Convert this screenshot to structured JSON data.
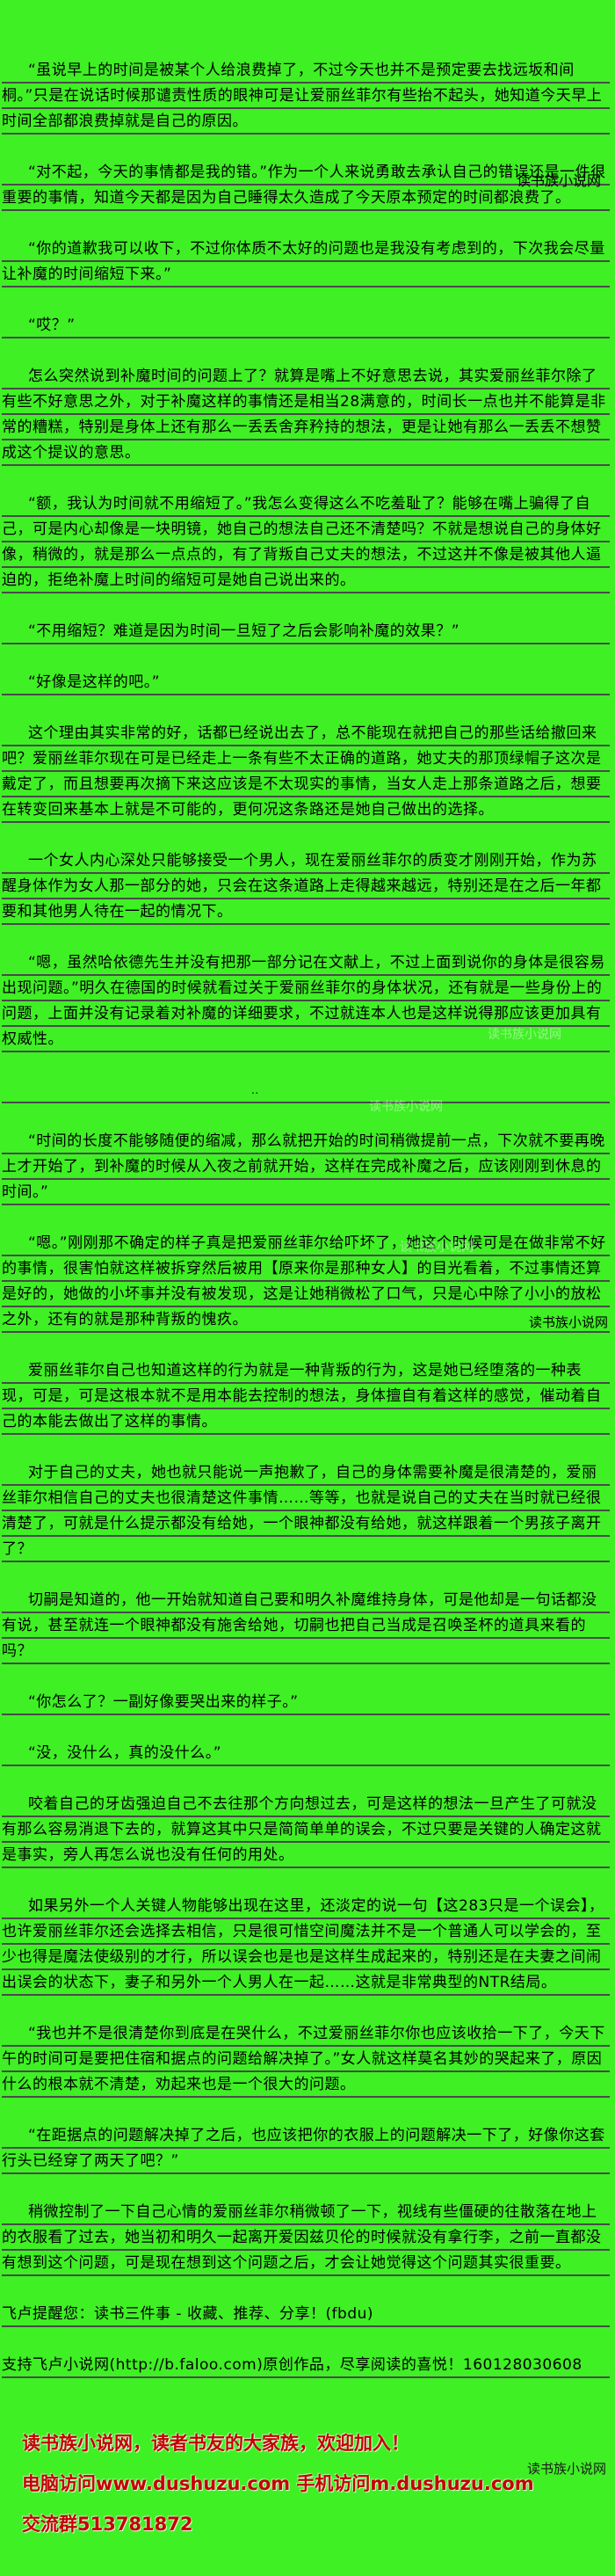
{
  "page": {
    "background_color": "#3ff024",
    "rule_line_color": "#4a4a4a",
    "text_color": "#000000",
    "footer_accent_color": "#c40000"
  },
  "paragraphs": [
    {
      "cls": "indent",
      "text": "“虽说早上的时间是被某个人给浪费掉了，不过今天也并不是预定要去找远坂和间桐。”只是在说话时候那谴责性质的眼神可是让爱丽丝菲尔有些抬不起头，她知道今天早上时间全部都浪费掉就是自己的原因。"
    },
    {
      "cls": "indent",
      "text": "“对不起，今天的事情都是我的错。”作为一个人来说勇敢去承认自己的错误还是一件很重要的事情，知道今天都是因为自己睡得太久造成了今天原本预定的时间都浪费了。"
    },
    {
      "cls": "indent",
      "text": "“你的道歉我可以收下，不过你体质不太好的问题也是我没有考虑到的，下次我会尽量让补魔的时间缩短下来。”"
    },
    {
      "cls": "indent",
      "text": "“哎？”"
    },
    {
      "cls": "indent",
      "text": "怎么突然说到补魔时间的问题上了？就算是嘴上不好意思去说，其实爱丽丝菲尔除了有些不好意思之外，对于补魔这样的事情还是相当28满意的，时间长一点也并不能算是非常的糟糕，特别是身体上还有那么一丢丢舍弃矜持的想法，更是让她有那么一丢丢不想赞成这个提议的意思。"
    },
    {
      "cls": "indent",
      "text": "“额，我认为时间就不用缩短了。”我怎么变得这么不吃羞耻了？能够在嘴上骗得了自己，可是内心却像是一块明镜，她自己的想法自己还不清楚吗？不就是想说自己的身体好像，稍微的，就是那么一点点的，有了背叛自己丈夫的想法，不过这并不像是被其他人逼迫的，拒绝补魔上时间的缩短可是她自己说出来的。"
    },
    {
      "cls": "indent",
      "text": "“不用缩短？难道是因为时间一旦短了之后会影响补魔的效果？”"
    },
    {
      "cls": "indent",
      "text": "“好像是这样的吧。”"
    },
    {
      "cls": "indent",
      "text": "这个理由其实非常的好，话都已经说出去了，总不能现在就把自己的那些话给撤回来吧？爱丽丝菲尔现在可是已经走上一条有些不太正确的道路，她丈夫的那顶绿帽子这次是戴定了，而且想要再次摘下来这应该是不太现实的事情，当女人走上那条道路之后，想要在转变回来基本上就是不可能的，更何况这条路还是她自己做出的选择。"
    },
    {
      "cls": "indent",
      "text": "一个女人内心深处只能够接受一个男人，现在爱丽丝菲尔的质变才刚刚开始，作为苏醒身体作为女人那一部分的她，只会在这条道路上走得越来越远，特别还是在之后一年都要和其他男人待在一起的情况下。"
    },
    {
      "cls": "indent",
      "text": "“嗯，虽然哈依德先生并没有把那一部分记在文献上，不过上面到说你的身体是很容易出现问题。”明久在德国的时候就看过关于爱丽丝菲尔的身体状况，还有就是一些身份上的问题，上面并没有记录着对补魔的详细要求，不过就连本人也是这样说得那应该更加具有权威性。"
    },
    {
      "cls": "dots",
      "text": ".."
    },
    {
      "cls": "indent",
      "text": "“时间的长度不能够随便的缩减，那么就把开始的时间稍微提前一点，下次就不要再晚上才开始了，到补魔的时候从入夜之前就开始，这样在完成补魔之后，应该刚刚到休息的时间。”"
    },
    {
      "cls": "indent",
      "text": "“嗯。”刚刚那不确定的样子真是把爱丽丝菲尔给吓坏了，她这个时候可是在做非常不好的事情，很害怕就这样被拆穿然后被用【原来你是那种女人】的目光看着，不过事情还算是好的，她做的小坏事并没有被发现，这是让她稍微松了口气，只是心中除了小小的放松之外，还有的就是那种背叛的愧疚。"
    },
    {
      "cls": "indent",
      "text": "爱丽丝菲尔自己也知道这样的行为就是一种背叛的行为，这是她已经堕落的一种表现，可是，可是这根本就不是用本能去控制的想法，身体擅自有着这样的感觉，催动着自己的本能去做出了这样的事情。"
    },
    {
      "cls": "indent",
      "text": "对于自己的丈夫，她也就只能说一声抱歉了，自己的身体需要补魔是很清楚的，爱丽丝菲尔相信自己的丈夫也很清楚这件事情……等等，也就是说自己的丈夫在当时就已经很清楚了，可就是什么提示都没有给她，一个眼神都没有给她，就这样跟着一个男孩子离开了？"
    },
    {
      "cls": "indent",
      "text": "切嗣是知道的，他一开始就知道自己要和明久补魔维持身体，可是他却是一句话都没有说，甚至就连一个眼神都没有施舍给她，切嗣也把自己当成是召唤圣杯的道具来看的吗？"
    },
    {
      "cls": "indent",
      "text": "“你怎么了？一副好像要哭出来的样子。”"
    },
    {
      "cls": "indent",
      "text": "“没，没什么，真的没什么。”"
    },
    {
      "cls": "indent",
      "text": "咬着自己的牙齿强迫自己不去往那个方向想过去，可是这样的想法一旦产生了可就没有那么容易消退下去的，就算这其中只是简简单单的误会，不过只要是关键的人确定这就是事实，旁人再怎么说也没有任何的用处。"
    },
    {
      "cls": "indent",
      "text": "如果另外一个人关键人物能够出现在这里，还淡定的说一句【这283只是一个误会】，也许爱丽丝菲尔还会选择去相信，只是很可惜空间魔法并不是一个普通人可以学会的，至少也得是魔法使级别的才行，所以误会也是也是这样生成起来的，特别还是在夫妻之间闹出误会的状态下，妻子和另外一个人男人在一起……这就是非常典型的NTR结局。"
    },
    {
      "cls": "indent",
      "text": "“我也并不是很清楚你到底是在哭什么，不过爱丽丝菲尔你也应该收拾一下了，今天下午的时间可是要把住宿和据点的问题给解决掉了。”女人就这样莫名其妙的哭起来了，原因什么的根本就不清楚，劝起来也是一个很大的问题。"
    },
    {
      "cls": "indent",
      "text": "“在距据点的问题解决掉了之后，也应该把你的衣服上的问题解决一下了，好像你这套行头已经穿了两天了吧？”"
    },
    {
      "cls": "indent",
      "text": "稍微控制了一下自己心情的爱丽丝菲尔稍微顿了一下，视线有些僵硬的往散落在地上的衣服看了过去，她当初和明久一起离开爱因兹贝伦的时候就没有拿行李，之前一直都没有想到这个问题，可是现在想到这个问题之后，才会让她觉得这个问题其实很重要。"
    },
    {
      "cls": "noindent",
      "text": "飞卢提醒您：读书三件事 - 收藏、推荐、分享！(fbdu)"
    },
    {
      "cls": "noindent",
      "text": "支持飞卢小说网(http://b.faloo.com)原创作品，尽享阅读的喜悦！160128030608"
    }
  ],
  "watermarks": {
    "inline": "读书族小说网",
    "mid": "读书族小说网",
    "footer_right": "读书族小说网",
    "faint": [
      "读书族小说网",
      "读书族小说网",
      "读书族小说网"
    ]
  },
  "footer": {
    "line1": "读书族小说网，读者书友的大家族，欢迎加入！",
    "line2": "电脑访问www.dushuzu.com 手机访问m.dushuzu.com",
    "line3": "交流群513781872"
  }
}
